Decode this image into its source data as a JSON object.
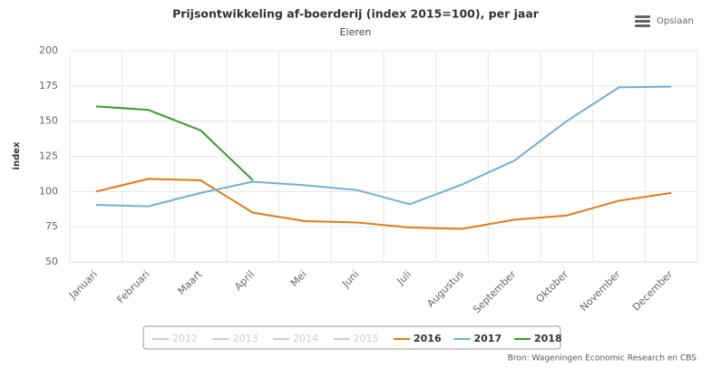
{
  "chart_data": {
    "type": "line",
    "title": "Prijsontwikkeling af-boerderij (index 2015=100), per jaar",
    "subtitle": "Eieren",
    "y_label": "index",
    "save_button": "Opslaan",
    "source": "Bron: Wageningen Economic Research en CBS",
    "categories": [
      "Januari",
      "Februari",
      "Maart",
      "April",
      "Mei",
      "Juni",
      "Juli",
      "Augustus",
      "September",
      "Oktober",
      "November",
      "December"
    ],
    "series": [
      {
        "name": "2012",
        "color": "#cccccc",
        "visible": false
      },
      {
        "name": "2013",
        "color": "#cccccc",
        "visible": false
      },
      {
        "name": "2014",
        "color": "#cccccc",
        "visible": false
      },
      {
        "name": "2015",
        "color": "#cccccc",
        "visible": false
      },
      {
        "name": "2016",
        "color": "#e07b16",
        "visible": true,
        "values": [
          100,
          109,
          108,
          85,
          79,
          78,
          74.5,
          73.5,
          80,
          83,
          93.5,
          99
        ]
      },
      {
        "name": "2017",
        "color": "#6fb1d8",
        "visible": true,
        "values": [
          90.5,
          89.5,
          99,
          107,
          104.5,
          101,
          91,
          105,
          122,
          150,
          174,
          174.5
        ]
      },
      {
        "name": "2018",
        "color": "#3b9a2c",
        "visible": true,
        "values": [
          160.5,
          158,
          143.5,
          108,
          null,
          null,
          null,
          null,
          null,
          null,
          null,
          null
        ]
      }
    ],
    "ylim": [
      50,
      200
    ],
    "yticks": [
      50,
      75,
      100,
      125,
      150,
      175,
      200
    ],
    "grid": true
  }
}
